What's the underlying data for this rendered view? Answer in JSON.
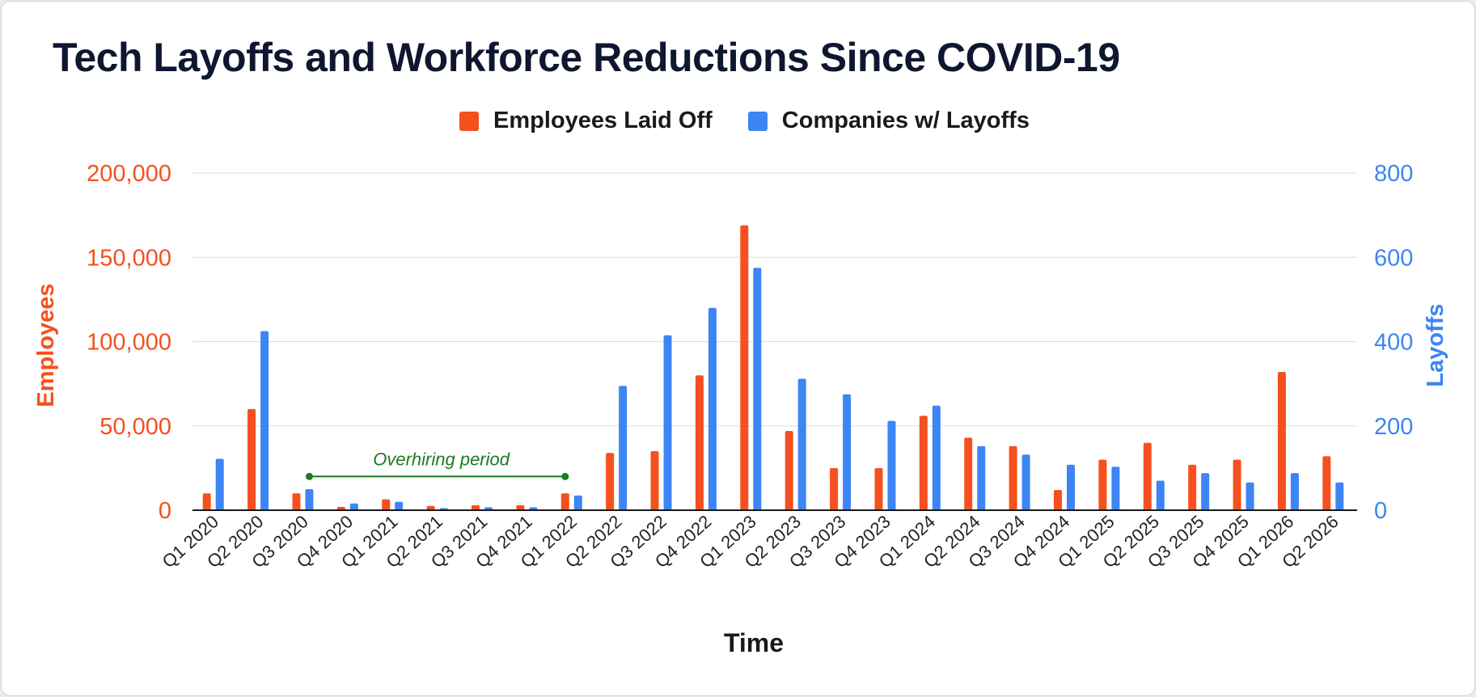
{
  "title": "Tech Layoffs and Workforce Reductions Since COVID-19",
  "colors": {
    "employees": "#f4511e",
    "companies": "#3d85f5",
    "annotation": "#1e7a1e",
    "grid": "#dcdcdc",
    "axis": "#1a1a1a"
  },
  "chart_data": {
    "type": "bar",
    "title": "Tech Layoffs and Workforce Reductions Since COVID-19",
    "categories": [
      "Q1 2020",
      "Q2 2020",
      "Q3 2020",
      "Q4 2020",
      "Q1 2021",
      "Q2 2021",
      "Q3 2021",
      "Q4 2021",
      "Q1 2022",
      "Q2 2022",
      "Q3 2022",
      "Q4 2022",
      "Q1 2023",
      "Q2 2023",
      "Q3 2023",
      "Q4 2023",
      "Q1 2024",
      "Q2 2024",
      "Q3 2024",
      "Q4 2024",
      "Q1 2025",
      "Q2 2025",
      "Q3 2025",
      "Q4 2025",
      "Q1 2026",
      "Q2 2026"
    ],
    "series": [
      {
        "name": "Employees Laid Off",
        "axis": "left",
        "values": [
          10000,
          60000,
          10000,
          2000,
          6500,
          2500,
          3000,
          3000,
          10000,
          34000,
          35000,
          80000,
          169000,
          47000,
          25000,
          25000,
          56000,
          43000,
          38000,
          12000,
          30000,
          40000,
          27000,
          30000,
          82000,
          32000
        ]
      },
      {
        "name": "Companies w/ Layoffs",
        "axis": "right",
        "values": [
          122,
          425,
          50,
          16,
          20,
          5,
          7,
          7,
          35,
          295,
          415,
          480,
          575,
          312,
          275,
          212,
          248,
          152,
          132,
          108,
          103,
          70,
          88,
          66,
          88,
          66
        ]
      }
    ],
    "xlabel": "Time",
    "ylabel_left": "Employees",
    "ylabel_right": "Layoffs",
    "ylim_left": [
      0,
      200000
    ],
    "ylim_right": [
      0,
      800
    ],
    "yticks_left": [
      "0",
      "50,000",
      "100,000",
      "150,000",
      "200,000"
    ],
    "yticks_right": [
      "0",
      "200",
      "400",
      "600",
      "800"
    ],
    "grid": true,
    "legend": "top-center",
    "annotation": {
      "text": "Overhiring period",
      "from": "Q3 2020",
      "to": "Q1 2022",
      "value_left": 20000
    }
  }
}
